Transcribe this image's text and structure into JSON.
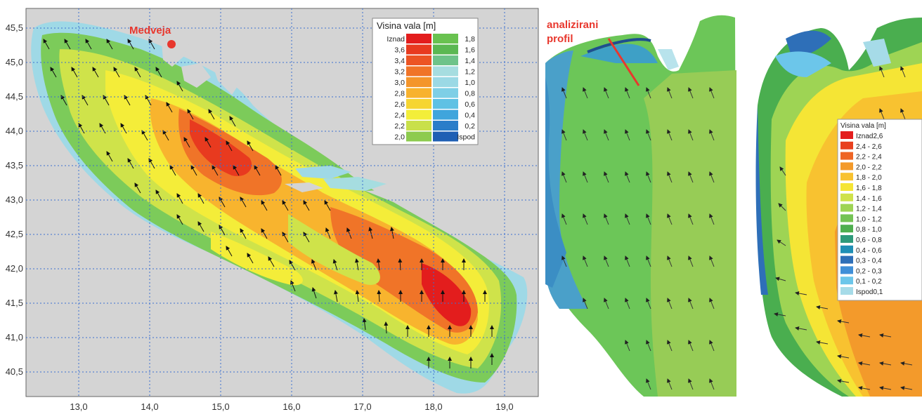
{
  "main_map": {
    "y_ticks": [
      "45,5",
      "45,0",
      "44,5",
      "44,0",
      "43,5",
      "43,0",
      "42,5",
      "42,0",
      "41,5",
      "41,0",
      "40,5"
    ],
    "x_ticks": [
      "13,0",
      "14,0",
      "15,0",
      "16,0",
      "17,0",
      "18,0",
      "19,0"
    ],
    "place_label": "Medveja",
    "legend": {
      "title": "Visina vala [m]",
      "left_labels": [
        "Iznad",
        "3,6",
        "3,4",
        "3,2",
        "3,0",
        "2,8",
        "2,6",
        "2,4",
        "2,2",
        "2,0"
      ],
      "right_labels": [
        "1,8",
        "1,6",
        "1,4",
        "1,2",
        "1,0",
        "0,8",
        "0,6",
        "0,4",
        "0,2",
        "Ispod"
      ],
      "left_colors": [
        "#e31d1d",
        "#e83a1f",
        "#ec5424",
        "#f07428",
        "#f4952b",
        "#f8b22e",
        "#f6d531",
        "#f3ee3a",
        "#c9e04a",
        "#8dcb4e"
      ],
      "right_colors": [
        "#69c250",
        "#5bb852",
        "#6ec389",
        "#a6dde0",
        "#9bd9e5",
        "#7ecfe6",
        "#5fc1e4",
        "#3fa5dc",
        "#2a7dc9",
        "#1f5fb4"
      ]
    }
  },
  "mid_map": {
    "annotation": [
      "analizirani",
      "profil"
    ]
  },
  "right_map": {
    "legend": {
      "title": "Visina vala [m]",
      "labels": [
        "Iznad2,6",
        "2,4 - 2,6",
        "2,2 - 2,4",
        "2,0 - 2,2",
        "1,8 - 2,0",
        "1,6 - 1,8",
        "1,4 - 1,6",
        "1,2 - 1,4",
        "1,0 - 1,2",
        "0,8 - 1,0",
        "0,6 - 0,8",
        "0,4 - 0,6",
        "0,3 - 0,4",
        "0,2 - 0,3",
        "0,1 - 0,2",
        "Ispod0,1"
      ],
      "colors": [
        "#e31d1d",
        "#e8401f",
        "#ee6525",
        "#f39a2b",
        "#f8c230",
        "#f5e535",
        "#cfe24a",
        "#9ed454",
        "#74c354",
        "#4faf4f",
        "#2e9a7a",
        "#1f8fb5",
        "#2e6fb8",
        "#3f8fd8",
        "#6cc6ea",
        "#a6dbe8"
      ]
    }
  }
}
